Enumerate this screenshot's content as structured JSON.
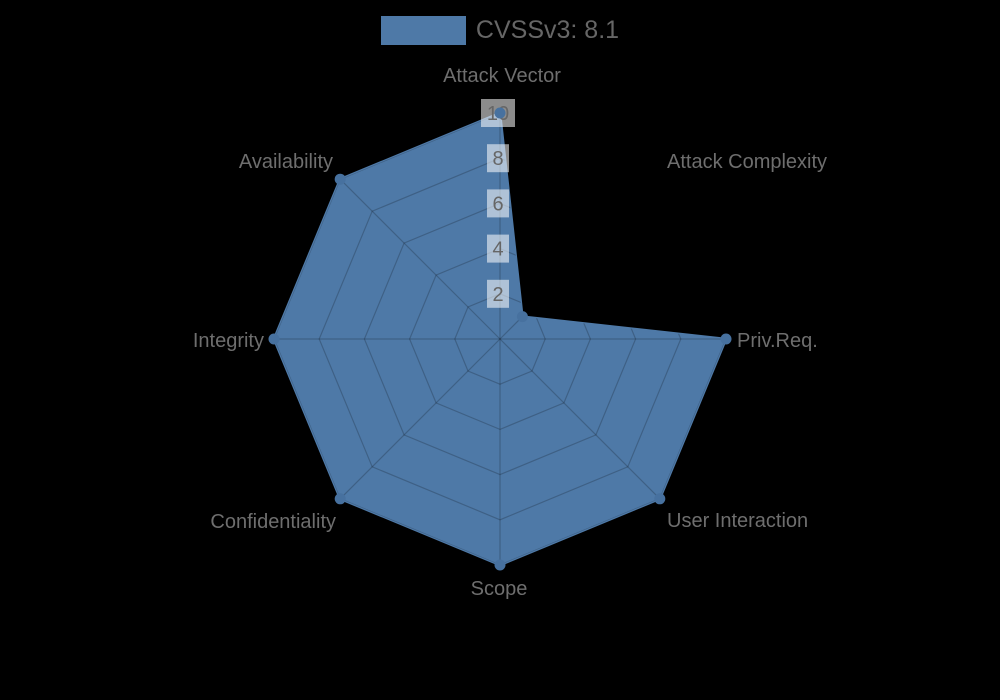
{
  "legend": {
    "label": "CVSSv3: 8.1",
    "swatch_color": "#4e79a7"
  },
  "chart_data": {
    "type": "radar",
    "title": "CVSSv3: 8.1",
    "categories": [
      "Attack Vector",
      "Attack Complexity",
      "Priv.Req.",
      "User Interaction",
      "Scope",
      "Confidentiality",
      "Integrity",
      "Availability"
    ],
    "series": [
      {
        "name": "CVSSv3: 8.1",
        "values": [
          10,
          1.4,
          10,
          10,
          10,
          10,
          10,
          10
        ]
      }
    ],
    "max": 10,
    "ticks": [
      2,
      4,
      6,
      8,
      10
    ],
    "tick_axis": "vertical-top",
    "grid": "on",
    "legend_position": "top-center",
    "colors": {
      "fill": "#4e79a7",
      "stroke": "#4e79a7",
      "marker": "#47719f",
      "grid_line": "rgba(0,0,0,0.2)",
      "axis_label": "#6e6e6e",
      "tick_text": "#666666",
      "tick_box": "rgba(255,255,255,0.55)",
      "background": "#000000"
    }
  }
}
